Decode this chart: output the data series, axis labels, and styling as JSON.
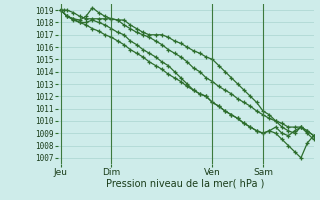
{
  "background_color": "#ceecea",
  "grid_color": "#aad4d0",
  "line_color": "#2d6e2d",
  "xlabel": "Pression niveau de la mer( hPa )",
  "ylim": [
    1006.5,
    1019.5
  ],
  "yticks": [
    1007,
    1008,
    1009,
    1010,
    1011,
    1012,
    1013,
    1014,
    1015,
    1016,
    1017,
    1018,
    1019
  ],
  "day_labels": [
    "Jeu",
    "Dim",
    "Ven",
    "Sam"
  ],
  "day_positions": [
    0,
    8,
    24,
    32
  ],
  "xlim": [
    -0.5,
    40
  ],
  "lines": [
    {
      "kp_x": [
        0,
        0.5,
        1,
        2,
        3,
        4,
        5,
        6,
        7,
        8,
        9,
        10,
        11,
        12,
        13,
        14,
        15,
        16,
        17,
        18,
        19,
        20,
        21,
        22,
        23,
        24,
        25,
        26,
        27,
        28,
        29,
        30,
        31,
        32,
        33,
        34,
        35,
        36,
        37,
        38,
        39,
        40
      ],
      "kp_y": [
        1019.0,
        1019.0,
        1019.0,
        1018.8,
        1018.5,
        1018.3,
        1018.3,
        1018.3,
        1018.3,
        1018.3,
        1018.2,
        1018.2,
        1017.8,
        1017.5,
        1017.2,
        1017.0,
        1017.0,
        1017.0,
        1016.8,
        1016.5,
        1016.3,
        1016.0,
        1015.7,
        1015.5,
        1015.2,
        1015.0,
        1014.5,
        1014.0,
        1013.5,
        1013.0,
        1012.5,
        1012.0,
        1011.5,
        1010.8,
        1010.5,
        1010.0,
        1009.8,
        1009.5,
        1009.5,
        1009.5,
        1009.2,
        1008.8
      ]
    },
    {
      "kp_x": [
        0,
        1,
        2,
        3,
        4,
        5,
        6,
        7,
        8,
        9,
        10,
        11,
        12,
        13,
        14,
        15,
        16,
        17,
        18,
        19,
        20,
        21,
        22,
        23,
        24,
        25,
        26,
        27,
        28,
        29,
        30,
        31,
        32,
        33,
        34,
        35,
        36,
        37,
        38,
        39,
        40
      ],
      "kp_y": [
        1019.0,
        1018.5,
        1018.3,
        1018.2,
        1018.5,
        1019.2,
        1018.8,
        1018.5,
        1018.3,
        1018.2,
        1017.8,
        1017.5,
        1017.2,
        1017.0,
        1016.8,
        1016.5,
        1016.2,
        1015.8,
        1015.5,
        1015.2,
        1014.8,
        1014.3,
        1014.0,
        1013.5,
        1013.2,
        1012.8,
        1012.5,
        1012.2,
        1011.8,
        1011.5,
        1011.2,
        1010.8,
        1010.5,
        1010.2,
        1010.0,
        1009.5,
        1009.2,
        1009.0,
        1009.5,
        1009.0,
        1008.5
      ]
    },
    {
      "kp_x": [
        0,
        1,
        2,
        3,
        4,
        5,
        6,
        7,
        8,
        9,
        10,
        11,
        12,
        13,
        14,
        15,
        16,
        17,
        18,
        19,
        20,
        21,
        22,
        23,
        24,
        25,
        26,
        27,
        28,
        29,
        30,
        31,
        32,
        33,
        34,
        35,
        36,
        37,
        38,
        39,
        40
      ],
      "kp_y": [
        1019.0,
        1018.5,
        1018.2,
        1018.0,
        1018.0,
        1018.2,
        1018.0,
        1017.8,
        1017.5,
        1017.2,
        1017.0,
        1016.5,
        1016.2,
        1015.8,
        1015.5,
        1015.2,
        1014.8,
        1014.5,
        1014.0,
        1013.5,
        1013.0,
        1012.5,
        1012.2,
        1012.0,
        1011.5,
        1011.2,
        1010.8,
        1010.5,
        1010.2,
        1009.8,
        1009.5,
        1009.2,
        1009.0,
        1009.2,
        1009.5,
        1009.0,
        1008.8,
        1009.2,
        1009.5,
        1009.2,
        1008.8
      ]
    },
    {
      "kp_x": [
        0,
        1,
        2,
        3,
        4,
        5,
        6,
        7,
        8,
        9,
        10,
        11,
        12,
        13,
        14,
        15,
        16,
        17,
        18,
        19,
        20,
        21,
        22,
        23,
        24,
        25,
        26,
        27,
        28,
        29,
        30,
        31,
        32,
        33,
        34,
        35,
        36,
        37,
        38,
        39,
        40
      ],
      "kp_y": [
        1019.0,
        1018.5,
        1018.3,
        1018.0,
        1017.8,
        1017.5,
        1017.3,
        1017.0,
        1016.8,
        1016.5,
        1016.2,
        1015.8,
        1015.5,
        1015.2,
        1014.8,
        1014.5,
        1014.2,
        1013.8,
        1013.5,
        1013.2,
        1012.8,
        1012.5,
        1012.2,
        1012.0,
        1011.5,
        1011.2,
        1010.8,
        1010.5,
        1010.2,
        1009.8,
        1009.5,
        1009.2,
        1009.0,
        1009.2,
        1009.0,
        1008.5,
        1008.0,
        1007.5,
        1007.0,
        1008.2,
        1008.8
      ]
    }
  ]
}
